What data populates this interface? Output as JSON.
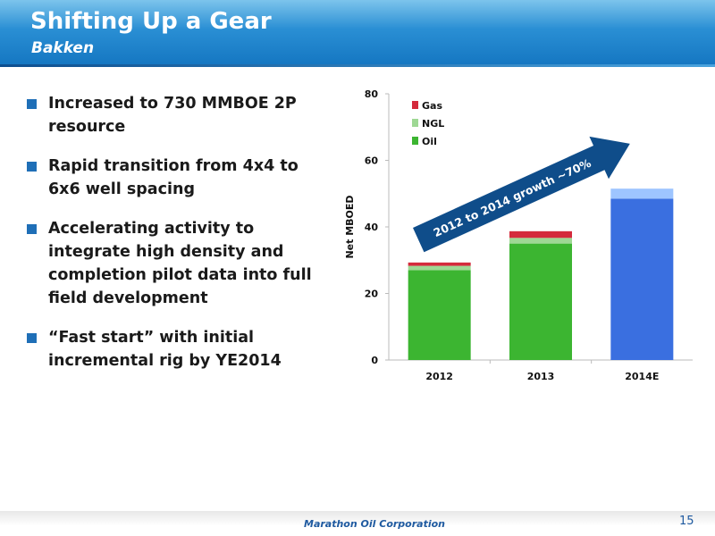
{
  "header": {
    "title": "Shifting Up a Gear",
    "subtitle": "Bakken"
  },
  "bullets": [
    "Increased to 730 MMBOE 2P resource",
    "Rapid transition from 4x4 to 6x6 well spacing",
    "Accelerating activity to integrate high density and completion pilot data into full field development",
    "“Fast start” with initial incremental rig by YE2014"
  ],
  "chart_data": {
    "type": "bar",
    "stacked": true,
    "categories": [
      "2012",
      "2013",
      "2014E"
    ],
    "series": [
      {
        "name": "Oil",
        "values": [
          27,
          35,
          48.5
        ],
        "color": "#3cb531"
      },
      {
        "name": "NGL",
        "values": [
          1.3,
          1.7,
          3.0
        ],
        "color": "#9ed894"
      },
      {
        "name": "Gas",
        "values": [
          1.0,
          2.0,
          0
        ],
        "color": "#d42a3c"
      }
    ],
    "estimate_colors": {
      "Oil": "#3a6fe0",
      "NGL": "#9ec5ff"
    },
    "ylabel": "Net MBOED",
    "ylim": [
      0,
      80
    ],
    "yticks": [
      0,
      20,
      40,
      60,
      80
    ],
    "legend_position": "top-left",
    "legend_order": [
      "Gas",
      "NGL",
      "Oil"
    ],
    "annotation": "2012 to 2014 growth ~70%",
    "annotation_color": "#0f4d8a"
  },
  "footer": {
    "company": "Marathon Oil Corporation",
    "page_number": "15"
  }
}
